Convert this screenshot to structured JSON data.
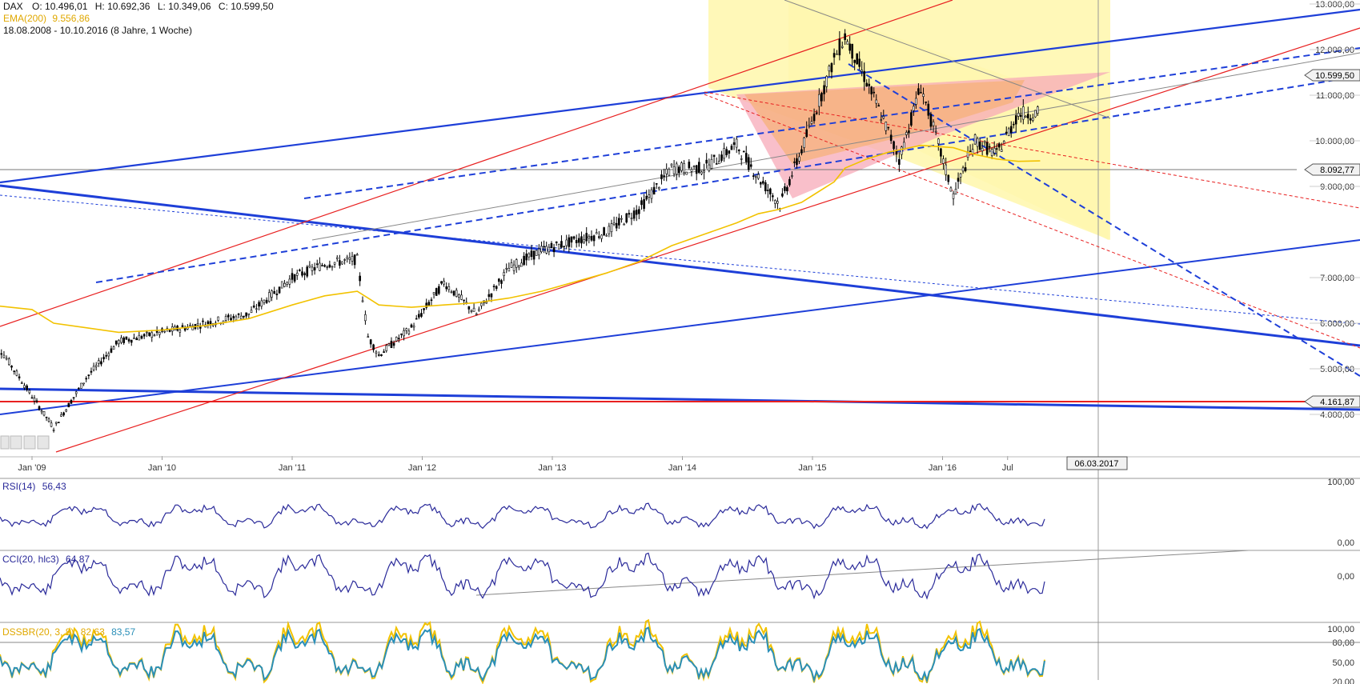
{
  "header": {
    "symbol": "DAX",
    "open_label": "O: 10.496,01",
    "high_label": "H: 10.692,36",
    "low_label": "L: 10.349,06",
    "close_label": "C: 10.599,50",
    "ema_label": "EMA(200)",
    "ema_value": "9.556,86",
    "range_label": "18.08.2008 - 10.10.2016 (8 Jahre, 1 Woche)"
  },
  "colors": {
    "price": "#000000",
    "ema": "#f2c200",
    "blue_line": "#1e3fd8",
    "red_line": "#e82020",
    "yellow_zone": "#fff7b0",
    "pink_zone": "#f7a9b8",
    "orange_zone": "#f5b27a",
    "rsi": "#2a2a9a",
    "cci": "#2a2a9a",
    "green_fill": "#9be29b",
    "red_fill": "#f2a0a0",
    "dss_fast": "#f2c200",
    "dss_slow": "#2a8fb8"
  },
  "axis": {
    "x_labels": [
      "Jan '09",
      "Jan '10",
      "Jan '11",
      "Jan '12",
      "Jan '13",
      "Jan '14",
      "Jan '15",
      "Jan '16",
      "Jul"
    ],
    "y_labels": [
      "13.000,00",
      "12.000,00",
      "11.000,00",
      "10.000,00",
      "9.000,00",
      "7.000,00",
      "6.000,00",
      "5.000,00",
      "4.000,00"
    ],
    "price_tags": {
      "last": "10.599,50",
      "level_high": "8.092,77",
      "level_low": "4.161,87"
    },
    "crosshair_date": "06.03.2017"
  },
  "panels": {
    "rsi": {
      "label": "RSI(14)",
      "value": "56,43",
      "y_labels": [
        "100,00",
        "0,00"
      ]
    },
    "cci": {
      "label": "CCI(20, hlc3)",
      "value": "64,87",
      "y_labels": [
        "0,00"
      ]
    },
    "dss": {
      "label": "DSSBR(20, 3, 8)",
      "value_fast": "82,63",
      "value_slow": "83,57",
      "y_labels": [
        "100,00",
        "80,00",
        "50,00",
        "20,00"
      ]
    }
  },
  "toolbar_icons": [
    "chart-tool-icon",
    "zoom-tool-icon",
    "save-tool-icon",
    "print-tool-icon"
  ],
  "chart_data": {
    "type": "line",
    "title": "DAX",
    "xlabel": "",
    "ylabel": "",
    "x": [
      "2008-09",
      "2009-01",
      "2009-03",
      "2009-06",
      "2009-09",
      "2010-01",
      "2010-05",
      "2010-09",
      "2011-01",
      "2011-04",
      "2011-07",
      "2011-08",
      "2011-09",
      "2011-12",
      "2012-03",
      "2012-06",
      "2012-09",
      "2012-12",
      "2013-03",
      "2013-06",
      "2013-09",
      "2013-12",
      "2014-03",
      "2014-06",
      "2014-08",
      "2014-10",
      "2014-12",
      "2015-03",
      "2015-04",
      "2015-06",
      "2015-08",
      "2015-09",
      "2015-11",
      "2016-02",
      "2016-04",
      "2016-06",
      "2016-08",
      "2016-10"
    ],
    "ylim": [
      3500,
      13000
    ],
    "series": [
      {
        "name": "DAX",
        "values": [
          5800,
          4400,
          3700,
          4800,
          5600,
          5800,
          6000,
          6200,
          7000,
          7300,
          7400,
          5700,
          5300,
          5900,
          6900,
          6200,
          7200,
          7600,
          7800,
          8000,
          8500,
          9400,
          9400,
          9900,
          9200,
          8600,
          9800,
          11800,
          12300,
          11300,
          10200,
          9600,
          11200,
          8800,
          10000,
          9700,
          10600,
          10600
        ]
      },
      {
        "name": "EMA(200)",
        "values": [
          6400,
          6300,
          6000,
          5900,
          5800,
          5850,
          5950,
          6100,
          6400,
          6600,
          6700,
          6550,
          6400,
          6350,
          6400,
          6450,
          6550,
          6700,
          6900,
          7100,
          7350,
          7700,
          7950,
          8200,
          8400,
          8500,
          8650,
          9100,
          9400,
          9600,
          9750,
          9800,
          9900,
          9850,
          9700,
          9600,
          9550,
          9560
        ]
      }
    ]
  }
}
